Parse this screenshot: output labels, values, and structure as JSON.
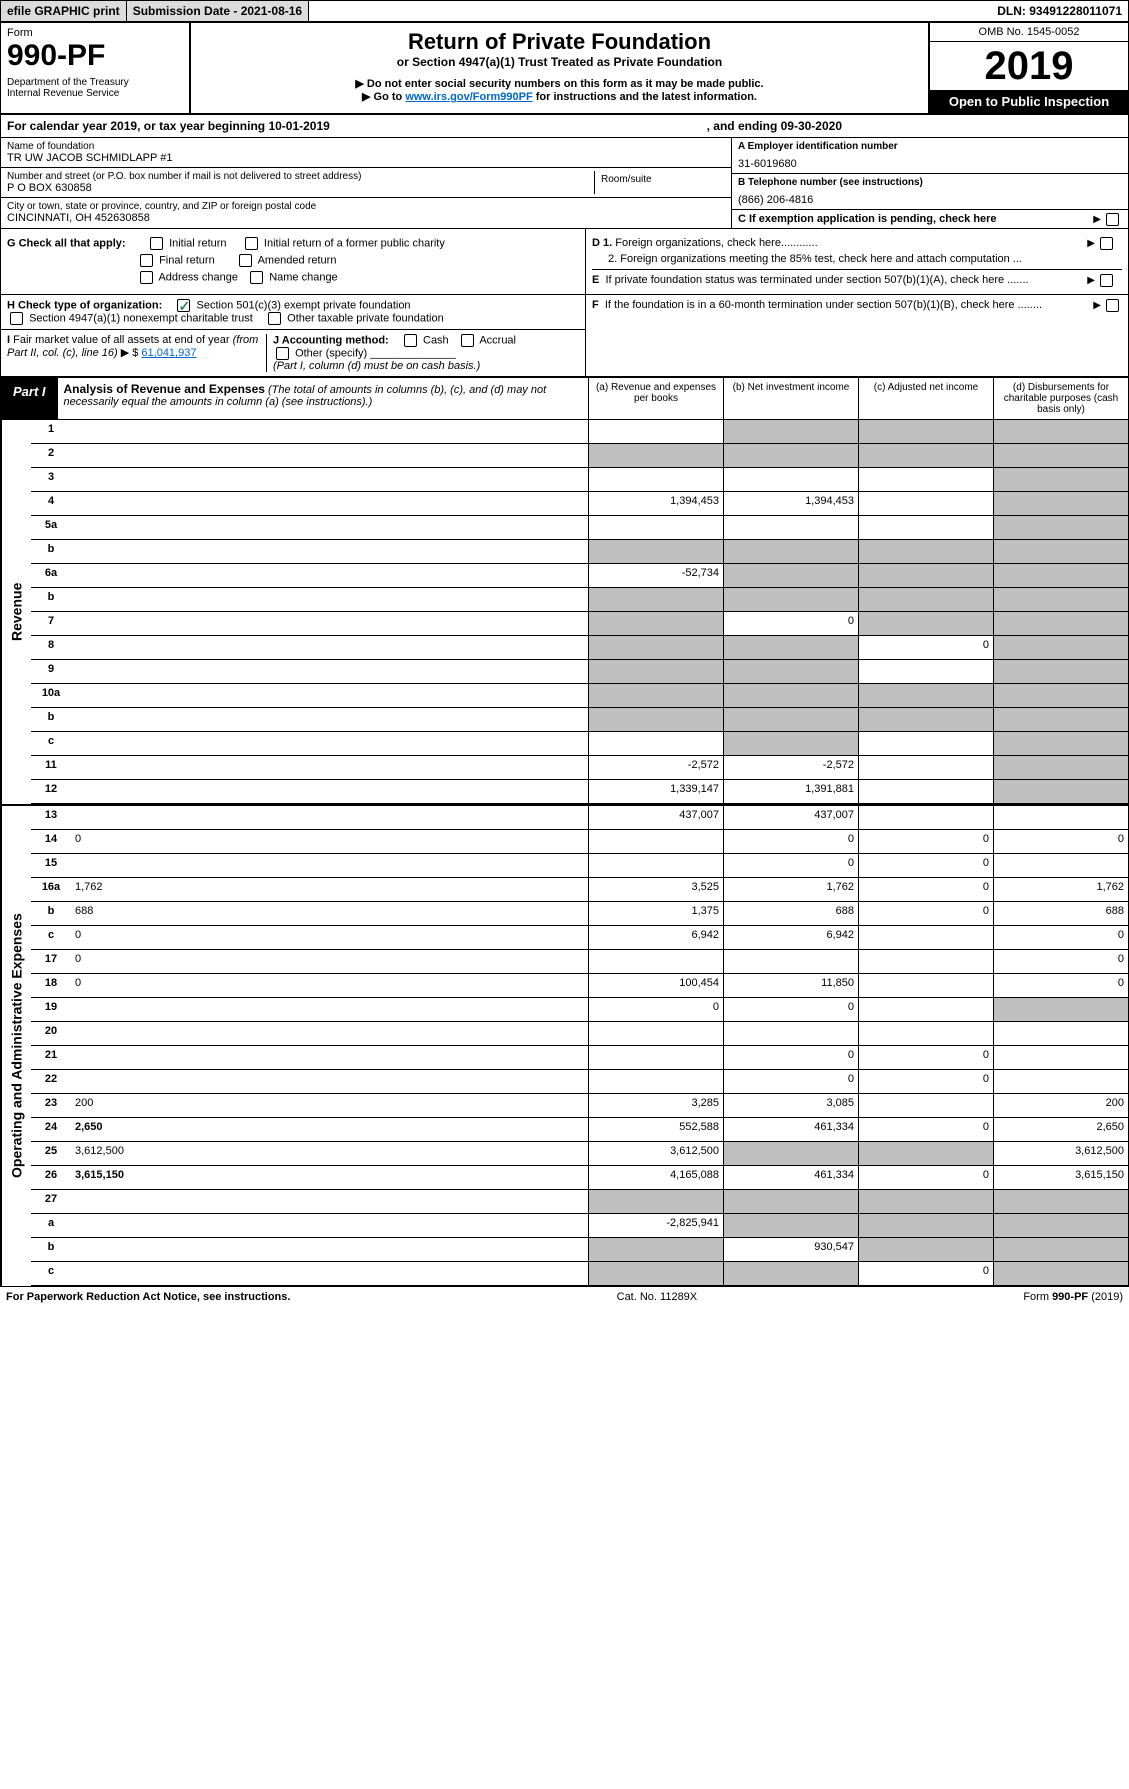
{
  "topbar": {
    "efile": "efile GRAPHIC print",
    "subdate_label": "Submission Date - 2021-08-16",
    "dln": "DLN: 93491228011071"
  },
  "head": {
    "form_label": "Form",
    "form_no": "990-PF",
    "dept": "Department of the Treasury",
    "irs": "Internal Revenue Service",
    "title": "Return of Private Foundation",
    "subtitle": "or Section 4947(a)(1) Trust Treated as Private Foundation",
    "note1": "▶ Do not enter social security numbers on this form as it may be made public.",
    "note2_pre": "▶ Go to ",
    "note2_link": "www.irs.gov/Form990PF",
    "note2_post": " for instructions and the latest information.",
    "omb": "OMB No. 1545-0052",
    "year": "2019",
    "open": "Open to Public Inspection"
  },
  "calyear": {
    "left": "For calendar year 2019, or tax year beginning 10-01-2019",
    "right": ", and ending 09-30-2020"
  },
  "ident": {
    "name_label": "Name of foundation",
    "name": "TR UW JACOB SCHMIDLAPP #1",
    "addr_label": "Number and street (or P.O. box number if mail is not delivered to street address)",
    "addr": "P O BOX 630858",
    "room_label": "Room/suite",
    "city_label": "City or town, state or province, country, and ZIP or foreign postal code",
    "city": "CINCINNATI, OH  452630858",
    "a_label": "A Employer identification number",
    "a_val": "31-6019680",
    "b_label": "B Telephone number (see instructions)",
    "b_val": "(866) 206-4816",
    "c_label": "C If exemption application is pending, check here"
  },
  "opts": {
    "g_label": "G Check all that apply:",
    "g1": "Initial return",
    "g2": "Initial return of a former public charity",
    "g3": "Final return",
    "g4": "Amended return",
    "g5": "Address change",
    "g6": "Name change",
    "h_label": "H Check type of organization:",
    "h1": "Section 501(c)(3) exempt private foundation",
    "h2": "Section 4947(a)(1) nonexempt charitable trust",
    "h3": "Other taxable private foundation",
    "i_label": "I Fair market value of all assets at end of year (from Part II, col. (c), line 16) ▶ $ ",
    "i_val": "61,041,937",
    "j_label": "J Accounting method:",
    "j1": "Cash",
    "j2": "Accrual",
    "j3": "Other (specify)",
    "j_note": "(Part I, column (d) must be on cash basis.)",
    "d1": "D 1. Foreign organizations, check here............",
    "d2": "2. Foreign organizations meeting the 85% test, check here and attach computation ...",
    "e": "E  If private foundation status was terminated under section 507(b)(1)(A), check here .......",
    "f": "F  If the foundation is in a 60-month termination under section 507(b)(1)(B), check here ........"
  },
  "part1": {
    "tag": "Part I",
    "title": "Analysis of Revenue and Expenses",
    "note": " (The total of amounts in columns (b), (c), and (d) may not necessarily equal the amounts in column (a) (see instructions).)",
    "cola": "(a)  Revenue and expenses per books",
    "colb": "(b)  Net investment income",
    "colc": "(c)  Adjusted net income",
    "cold": "(d)  Disbursements for charitable purposes (cash basis only)"
  },
  "side": {
    "rev": "Revenue",
    "exp": "Operating and Administrative Expenses"
  },
  "rows": {
    "r1": {
      "n": "1",
      "d": "",
      "a": "",
      "b": "",
      "c": "",
      "ga": false,
      "gb": true,
      "gc": true,
      "gd": true
    },
    "r2": {
      "n": "2",
      "d": "",
      "a": "",
      "b": "",
      "c": "",
      "ga": true,
      "gb": true,
      "gc": true,
      "gd": true
    },
    "r3": {
      "n": "3",
      "d": "",
      "a": "",
      "b": "",
      "c": "",
      "ga": false,
      "gb": false,
      "gc": false,
      "gd": true
    },
    "r4": {
      "n": "4",
      "d": "",
      "a": "1,394,453",
      "b": "1,394,453",
      "c": "",
      "ga": false,
      "gb": false,
      "gc": false,
      "gd": true
    },
    "r5a": {
      "n": "5a",
      "d": "",
      "a": "",
      "b": "",
      "c": "",
      "ga": false,
      "gb": false,
      "gc": false,
      "gd": true
    },
    "r5b": {
      "n": "b",
      "d": "",
      "a": "",
      "b": "",
      "c": "",
      "ga": true,
      "gb": true,
      "gc": true,
      "gd": true
    },
    "r6a": {
      "n": "6a",
      "d": "",
      "a": "-52,734",
      "b": "",
      "c": "",
      "ga": false,
      "gb": true,
      "gc": true,
      "gd": true
    },
    "r6b": {
      "n": "b",
      "d": "",
      "a": "",
      "b": "",
      "c": "",
      "ga": true,
      "gb": true,
      "gc": true,
      "gd": true
    },
    "r7": {
      "n": "7",
      "d": "",
      "a": "",
      "b": "0",
      "c": "",
      "ga": true,
      "gb": false,
      "gc": true,
      "gd": true
    },
    "r8": {
      "n": "8",
      "d": "",
      "a": "",
      "b": "",
      "c": "0",
      "ga": true,
      "gb": true,
      "gc": false,
      "gd": true
    },
    "r9": {
      "n": "9",
      "d": "",
      "a": "",
      "b": "",
      "c": "",
      "ga": true,
      "gb": true,
      "gc": false,
      "gd": true
    },
    "r10a": {
      "n": "10a",
      "d": "",
      "a": "",
      "b": "",
      "c": "",
      "ga": true,
      "gb": true,
      "gc": true,
      "gd": true
    },
    "r10b": {
      "n": "b",
      "d": "",
      "a": "",
      "b": "",
      "c": "",
      "ga": true,
      "gb": true,
      "gc": true,
      "gd": true
    },
    "r10c": {
      "n": "c",
      "d": "",
      "a": "",
      "b": "",
      "c": "",
      "ga": false,
      "gb": true,
      "gc": false,
      "gd": true
    },
    "r11": {
      "n": "11",
      "d": "",
      "a": "-2,572",
      "b": "-2,572",
      "c": "",
      "ga": false,
      "gb": false,
      "gc": false,
      "gd": true
    },
    "r12": {
      "n": "12",
      "d": "",
      "a": "1,339,147",
      "b": "1,391,881",
      "c": "",
      "ga": false,
      "gb": false,
      "gc": false,
      "gd": true,
      "bold": true
    },
    "r13": {
      "n": "13",
      "d": "",
      "a": "437,007",
      "b": "437,007",
      "c": "",
      "ga": false,
      "gb": false,
      "gc": false,
      "gd": false
    },
    "r14": {
      "n": "14",
      "d": "0",
      "a": "",
      "b": "0",
      "c": "0",
      "ga": false,
      "gb": false,
      "gc": false,
      "gd": false
    },
    "r15": {
      "n": "15",
      "d": "",
      "a": "",
      "b": "0",
      "c": "0",
      "ga": false,
      "gb": false,
      "gc": false,
      "gd": false
    },
    "r16a": {
      "n": "16a",
      "d": "1,762",
      "a": "3,525",
      "b": "1,762",
      "c": "0",
      "ga": false,
      "gb": false,
      "gc": false,
      "gd": false
    },
    "r16b": {
      "n": "b",
      "d": "688",
      "a": "1,375",
      "b": "688",
      "c": "0",
      "ga": false,
      "gb": false,
      "gc": false,
      "gd": false
    },
    "r16c": {
      "n": "c",
      "d": "0",
      "a": "6,942",
      "b": "6,942",
      "c": "",
      "ga": false,
      "gb": false,
      "gc": false,
      "gd": false
    },
    "r17": {
      "n": "17",
      "d": "0",
      "a": "",
      "b": "",
      "c": "",
      "ga": false,
      "gb": false,
      "gc": false,
      "gd": false
    },
    "r18": {
      "n": "18",
      "d": "0",
      "a": "100,454",
      "b": "11,850",
      "c": "",
      "ga": false,
      "gb": false,
      "gc": false,
      "gd": false
    },
    "r19": {
      "n": "19",
      "d": "",
      "a": "0",
      "b": "0",
      "c": "",
      "ga": false,
      "gb": false,
      "gc": false,
      "gd": true
    },
    "r20": {
      "n": "20",
      "d": "",
      "a": "",
      "b": "",
      "c": "",
      "ga": false,
      "gb": false,
      "gc": false,
      "gd": false
    },
    "r21": {
      "n": "21",
      "d": "",
      "a": "",
      "b": "0",
      "c": "0",
      "ga": false,
      "gb": false,
      "gc": false,
      "gd": false
    },
    "r22": {
      "n": "22",
      "d": "",
      "a": "",
      "b": "0",
      "c": "0",
      "ga": false,
      "gb": false,
      "gc": false,
      "gd": false
    },
    "r23": {
      "n": "23",
      "d": "200",
      "a": "3,285",
      "b": "3,085",
      "c": "",
      "ga": false,
      "gb": false,
      "gc": false,
      "gd": false
    },
    "r24": {
      "n": "24",
      "d": "2,650",
      "a": "552,588",
      "b": "461,334",
      "c": "0",
      "ga": false,
      "gb": false,
      "gc": false,
      "gd": false,
      "bold": true
    },
    "r25": {
      "n": "25",
      "d": "3,612,500",
      "a": "3,612,500",
      "b": "",
      "c": "",
      "ga": false,
      "gb": true,
      "gc": true,
      "gd": false
    },
    "r26": {
      "n": "26",
      "d": "3,615,150",
      "a": "4,165,088",
      "b": "461,334",
      "c": "0",
      "ga": false,
      "gb": false,
      "gc": false,
      "gd": false,
      "bold": true
    },
    "r27": {
      "n": "27",
      "d": "",
      "a": "",
      "b": "",
      "c": "",
      "ga": true,
      "gb": true,
      "gc": true,
      "gd": true
    },
    "r27a": {
      "n": "a",
      "d": "",
      "a": "-2,825,941",
      "b": "",
      "c": "",
      "ga": false,
      "gb": true,
      "gc": true,
      "gd": true,
      "bold": true
    },
    "r27b": {
      "n": "b",
      "d": "",
      "a": "",
      "b": "930,547",
      "c": "",
      "ga": true,
      "gb": false,
      "gc": true,
      "gd": true,
      "bold": true
    },
    "r27c": {
      "n": "c",
      "d": "",
      "a": "",
      "b": "",
      "c": "0",
      "ga": true,
      "gb": true,
      "gc": false,
      "gd": true,
      "bold": true
    }
  },
  "row_order": {
    "revenue": [
      "r1",
      "r2",
      "r3",
      "r4",
      "r5a",
      "r5b",
      "r6a",
      "r6b",
      "r7",
      "r8",
      "r9",
      "r10a",
      "r10b",
      "r10c",
      "r11",
      "r12"
    ],
    "expenses": [
      "r13",
      "r14",
      "r15",
      "r16a",
      "r16b",
      "r16c",
      "r17",
      "r18",
      "r19",
      "r20",
      "r21",
      "r22",
      "r23",
      "r24",
      "r25",
      "r26",
      "r27",
      "r27a",
      "r27b",
      "r27c"
    ]
  },
  "footer": {
    "left": "For Paperwork Reduction Act Notice, see instructions.",
    "mid": "Cat. No. 11289X",
    "right": "Form 990-PF (2019)"
  },
  "colors": {
    "link": "#0066cc",
    "grey": "#bfbfbf",
    "check": "#2e8b57"
  }
}
